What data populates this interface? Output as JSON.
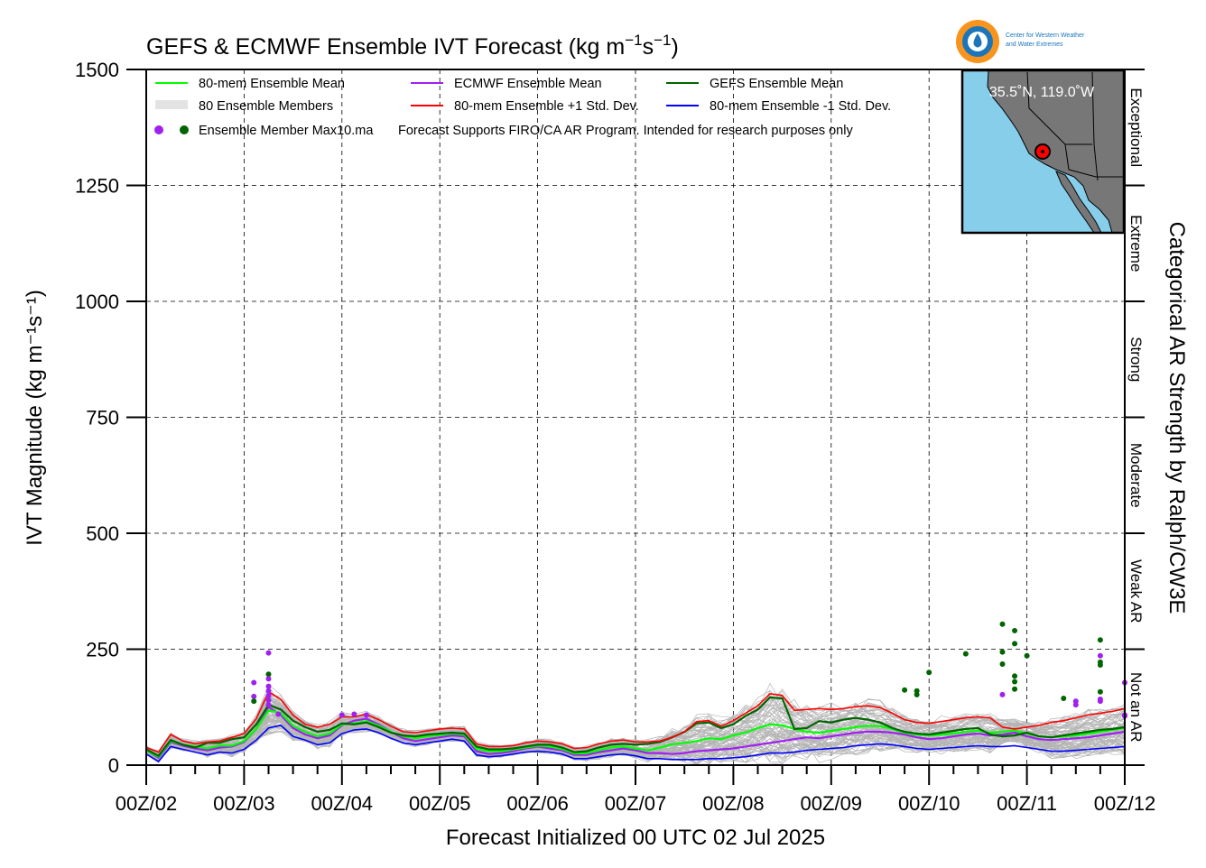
{
  "chart_data": {
    "type": "line",
    "title_main": "GEFS & ECMWF Ensemble IVT Forecast (kg m",
    "title_sup1": "−1",
    "title_mid": "s",
    "title_sup2": "−1",
    "title_end": ")",
    "xlabel": "Forecast Initialized 00 UTC 02 Jul 2025",
    "ylabel": "IVT Magnitude (kg m⁻¹s⁻¹)",
    "right_label": "Categorical AR Strength by Ralph/CW3E",
    "ylim": [
      0,
      1500
    ],
    "yticks": [
      "0",
      "250",
      "500",
      "750",
      "1000",
      "1250",
      "1500"
    ],
    "xlim": [
      0,
      10
    ],
    "xticks": [
      "00Z/02",
      "00Z/03",
      "00Z/04",
      "00Z/05",
      "00Z/06",
      "00Z/07",
      "00Z/08",
      "00Z/09",
      "00Z/10",
      "00Z/11",
      "00Z/12"
    ],
    "grid": true,
    "legend_placement": "top-left",
    "legend": {
      "mean80": "80-mem Ensemble Mean",
      "members": "80 Ensemble Members",
      "dots": "Ensemble Member Max10.ma",
      "ecmwf": "ECMWF Ensemble Mean",
      "plus": "80-mem Ensemble +1 Std. Dev.",
      "gefs": "GEFS Ensemble Mean",
      "minus": "80-mem Ensemble -1 Std. Dev.",
      "note": "Forecast Supports FIRO/CA AR Program. Intended for research purposes only"
    },
    "categories": [
      {
        "label": "Not an AR",
        "range": [
          0,
          250
        ]
      },
      {
        "label": "Weak AR",
        "range": [
          250,
          500
        ]
      },
      {
        "label": "Moderate",
        "range": [
          500,
          750
        ]
      },
      {
        "label": "Strong",
        "range": [
          750,
          1000
        ]
      },
      {
        "label": "Extreme",
        "range": [
          1000,
          1250
        ]
      },
      {
        "label": "Exceptional",
        "range": [
          1250,
          1500
        ]
      }
    ],
    "colors": {
      "mean80": "#00ff00",
      "ecmwf": "#a020f0",
      "gefs": "#006400",
      "plus": "#ff0000",
      "minus": "#0000ff",
      "members": "#b4b4b4"
    },
    "x": [
      0,
      0.125,
      0.25,
      0.375,
      0.5,
      0.625,
      0.75,
      0.875,
      1,
      1.125,
      1.25,
      1.375,
      1.5,
      1.625,
      1.75,
      1.875,
      2,
      2.125,
      2.25,
      2.375,
      2.5,
      2.625,
      2.75,
      2.875,
      3,
      3.125,
      3.25,
      3.375,
      3.5,
      3.625,
      3.75,
      3.875,
      4,
      4.125,
      4.25,
      4.375,
      4.5,
      4.625,
      4.75,
      4.875,
      5,
      5.125,
      5.25,
      5.375,
      5.5,
      5.625,
      5.75,
      5.875,
      6,
      6.125,
      6.25,
      6.375,
      6.5,
      6.625,
      6.75,
      6.875,
      7,
      7.125,
      7.25,
      7.375,
      7.5,
      7.625,
      7.75,
      7.875,
      8,
      8.125,
      8.25,
      8.375,
      8.5,
      8.625,
      8.75,
      8.875,
      9,
      9.125,
      9.25,
      9.375,
      9.5,
      9.625,
      9.75,
      9.875,
      10
    ],
    "series": [
      {
        "name": "80-mem Ensemble Mean",
        "key": "mean80",
        "values": [
          32,
          18,
          52,
          44,
          40,
          36,
          42,
          42,
          52,
          78,
          118,
          112,
          85,
          72,
          62,
          68,
          88,
          90,
          95,
          85,
          72,
          62,
          58,
          62,
          65,
          68,
          66,
          35,
          30,
          30,
          34,
          38,
          42,
          40,
          35,
          25,
          26,
          32,
          38,
          40,
          36,
          32,
          38,
          45,
          48,
          52,
          58,
          56,
          64,
          70,
          80,
          88,
          86,
          78,
          72,
          70,
          74,
          78,
          82,
          85,
          84,
          78,
          70,
          66,
          64,
          66,
          68,
          72,
          74,
          70,
          72,
          75,
          68,
          62,
          60,
          62,
          64,
          68,
          72,
          76,
          80
        ]
      },
      {
        "name": "ECMWF Ensemble Mean",
        "key": "ecmwf",
        "values": [
          32,
          16,
          50,
          42,
          36,
          32,
          38,
          40,
          50,
          78,
          125,
          108,
          80,
          66,
          58,
          64,
          86,
          96,
          100,
          88,
          72,
          58,
          52,
          56,
          60,
          64,
          62,
          30,
          24,
          26,
          30,
          36,
          40,
          36,
          32,
          22,
          22,
          28,
          32,
          36,
          32,
          26,
          26,
          24,
          26,
          30,
          32,
          34,
          36,
          40,
          44,
          48,
          52,
          56,
          60,
          58,
          62,
          66,
          70,
          72,
          72,
          70,
          66,
          60,
          56,
          58,
          62,
          66,
          68,
          64,
          66,
          70,
          62,
          56,
          54,
          56,
          58,
          60,
          64,
          68,
          72
        ]
      },
      {
        "name": "GEFS Ensemble Mean",
        "key": "gefs",
        "values": [
          34,
          20,
          54,
          44,
          38,
          48,
          48,
          56,
          60,
          88,
          130,
          120,
          96,
          82,
          72,
          76,
          90,
          88,
          92,
          82,
          70,
          64,
          62,
          66,
          68,
          70,
          68,
          40,
          34,
          34,
          36,
          40,
          44,
          44,
          38,
          28,
          30,
          38,
          44,
          46,
          44,
          46,
          50,
          60,
          72,
          90,
          92,
          80,
          88,
          106,
          120,
          146,
          144,
          78,
          80,
          95,
          92,
          98,
          102,
          98,
          92,
          80,
          72,
          68,
          66,
          70,
          74,
          78,
          80,
          66,
          62,
          64,
          70,
          62,
          60,
          64,
          68,
          72,
          76,
          78,
          82
        ]
      },
      {
        "name": "80-mem Ensemble +1 Std. Dev.",
        "key": "plus",
        "values": [
          38,
          28,
          66,
          52,
          46,
          50,
          52,
          60,
          68,
          100,
          158,
          142,
          108,
          88,
          82,
          88,
          104,
          104,
          110,
          98,
          84,
          72,
          70,
          74,
          78,
          80,
          78,
          46,
          40,
          40,
          42,
          48,
          52,
          50,
          46,
          36,
          38,
          46,
          52,
          54,
          50,
          50,
          52,
          60,
          72,
          94,
          96,
          84,
          96,
          112,
          128,
          154,
          150,
          118,
          120,
          122,
          120,
          122,
          126,
          128,
          124,
          112,
          98,
          92,
          90,
          94,
          98,
          102,
          104,
          102,
          82,
          78,
          82,
          86,
          92,
          96,
          102,
          108,
          112,
          116,
          122
        ]
      },
      {
        "name": "80-mem Ensemble -1 Std. Dev.",
        "key": "minus",
        "values": [
          24,
          8,
          40,
          34,
          28,
          22,
          28,
          26,
          34,
          54,
          80,
          86,
          62,
          54,
          44,
          48,
          68,
          76,
          78,
          70,
          58,
          48,
          44,
          48,
          52,
          56,
          52,
          22,
          18,
          20,
          24,
          28,
          30,
          28,
          24,
          14,
          14,
          18,
          22,
          24,
          20,
          14,
          14,
          12,
          12,
          12,
          14,
          14,
          16,
          18,
          22,
          26,
          26,
          28,
          32,
          34,
          36,
          38,
          42,
          44,
          46,
          44,
          40,
          36,
          34,
          36,
          38,
          40,
          42,
          40,
          40,
          42,
          38,
          34,
          30,
          30,
          32,
          34,
          36,
          38,
          40
        ]
      }
    ],
    "member_dots": [
      {
        "x": 1.1,
        "y": 178,
        "group": "ecmwf"
      },
      {
        "x": 1.1,
        "y": 148,
        "group": "ecmwf"
      },
      {
        "x": 1.1,
        "y": 138,
        "group": "gefs"
      },
      {
        "x": 1.25,
        "y": 242,
        "group": "ecmwf"
      },
      {
        "x": 1.25,
        "y": 196,
        "group": "gefs"
      },
      {
        "x": 1.25,
        "y": 186,
        "group": "ecmwf"
      },
      {
        "x": 1.25,
        "y": 170,
        "group": "ecmwf"
      },
      {
        "x": 1.25,
        "y": 160,
        "group": "ecmwf"
      },
      {
        "x": 1.25,
        "y": 150,
        "group": "ecmwf"
      },
      {
        "x": 1.25,
        "y": 140,
        "group": "ecmwf"
      },
      {
        "x": 1.25,
        "y": 130,
        "group": "ecmwf"
      },
      {
        "x": 1.35,
        "y": 110,
        "group": "ecmwf"
      },
      {
        "x": 2.0,
        "y": 108,
        "group": "ecmwf"
      },
      {
        "x": 2.125,
        "y": 110,
        "group": "ecmwf"
      },
      {
        "x": 2.25,
        "y": 108,
        "group": "ecmwf"
      },
      {
        "x": 7.75,
        "y": 162,
        "group": "gefs"
      },
      {
        "x": 7.875,
        "y": 152,
        "group": "gefs"
      },
      {
        "x": 7.875,
        "y": 160,
        "group": "gefs"
      },
      {
        "x": 8.0,
        "y": 200,
        "group": "gefs"
      },
      {
        "x": 8.375,
        "y": 240,
        "group": "gefs"
      },
      {
        "x": 8.75,
        "y": 304,
        "group": "gefs"
      },
      {
        "x": 8.75,
        "y": 244,
        "group": "gefs"
      },
      {
        "x": 8.75,
        "y": 218,
        "group": "gefs"
      },
      {
        "x": 8.75,
        "y": 152,
        "group": "ecmwf"
      },
      {
        "x": 8.875,
        "y": 290,
        "group": "gefs"
      },
      {
        "x": 8.875,
        "y": 262,
        "group": "gefs"
      },
      {
        "x": 8.875,
        "y": 192,
        "group": "gefs"
      },
      {
        "x": 8.875,
        "y": 180,
        "group": "gefs"
      },
      {
        "x": 8.875,
        "y": 164,
        "group": "gefs"
      },
      {
        "x": 9.0,
        "y": 236,
        "group": "gefs"
      },
      {
        "x": 9.375,
        "y": 144,
        "group": "gefs"
      },
      {
        "x": 9.5,
        "y": 138,
        "group": "ecmwf"
      },
      {
        "x": 9.5,
        "y": 130,
        "group": "ecmwf"
      },
      {
        "x": 9.75,
        "y": 270,
        "group": "gefs"
      },
      {
        "x": 9.75,
        "y": 236,
        "group": "ecmwf"
      },
      {
        "x": 9.75,
        "y": 222,
        "group": "gefs"
      },
      {
        "x": 9.75,
        "y": 216,
        "group": "gefs"
      },
      {
        "x": 9.75,
        "y": 158,
        "group": "gefs"
      },
      {
        "x": 9.75,
        "y": 142,
        "group": "ecmwf"
      },
      {
        "x": 9.75,
        "y": 138,
        "group": "ecmwf"
      },
      {
        "x": 10.0,
        "y": 178,
        "group": "ecmwf"
      },
      {
        "x": 10.0,
        "y": 106,
        "group": "ecmwf"
      },
      {
        "x": 10.0,
        "y": 108,
        "group": "ecmwf"
      }
    ],
    "inset_map": {
      "location_label": "35.5˚N, 119.0˚W",
      "land_color": "#777777",
      "ocean_color": "#87ceeb"
    },
    "logo": {
      "line1": "Center for Western Weather",
      "line2": "and Water Extremes"
    }
  }
}
